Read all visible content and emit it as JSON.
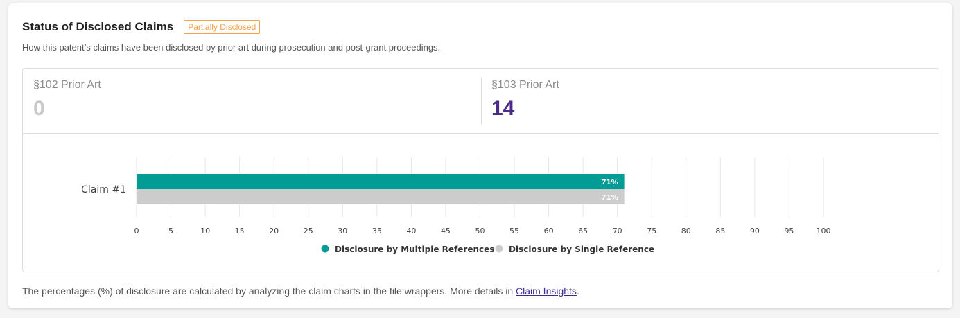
{
  "header": {
    "title": "Status of Disclosed Claims",
    "badge": "Partially Disclosed",
    "subtitle": "How this patent’s claims have been disclosed by prior art during prosecution and post-grant proceedings."
  },
  "stats": [
    {
      "label": "§102 Prior Art",
      "value": "0",
      "color": "#c8c8c8"
    },
    {
      "label": "§103 Prior Art",
      "value": "14",
      "color": "#4a2c87"
    }
  ],
  "chart_data": {
    "type": "bar",
    "orientation": "horizontal",
    "categories": [
      "Claim #1"
    ],
    "series": [
      {
        "name": "Disclosure by Multiple References",
        "values": [
          71
        ],
        "labels": [
          "71%"
        ],
        "color": "#009c95"
      },
      {
        "name": "Disclosure by Single Reference",
        "values": [
          71
        ],
        "labels": [
          "71%"
        ],
        "color": "#cccccc"
      }
    ],
    "xlim": [
      0,
      100
    ],
    "xticks": [
      0,
      5,
      10,
      15,
      20,
      25,
      30,
      35,
      40,
      45,
      50,
      55,
      60,
      65,
      70,
      75,
      80,
      85,
      90,
      95,
      100
    ],
    "grid": true,
    "legend": "bottom-center"
  },
  "footer": {
    "text": "The percentages (%) of disclosure are calculated by analyzing the claim charts in the file wrappers. More details in ",
    "link": "Claim Insights",
    "end": "."
  }
}
